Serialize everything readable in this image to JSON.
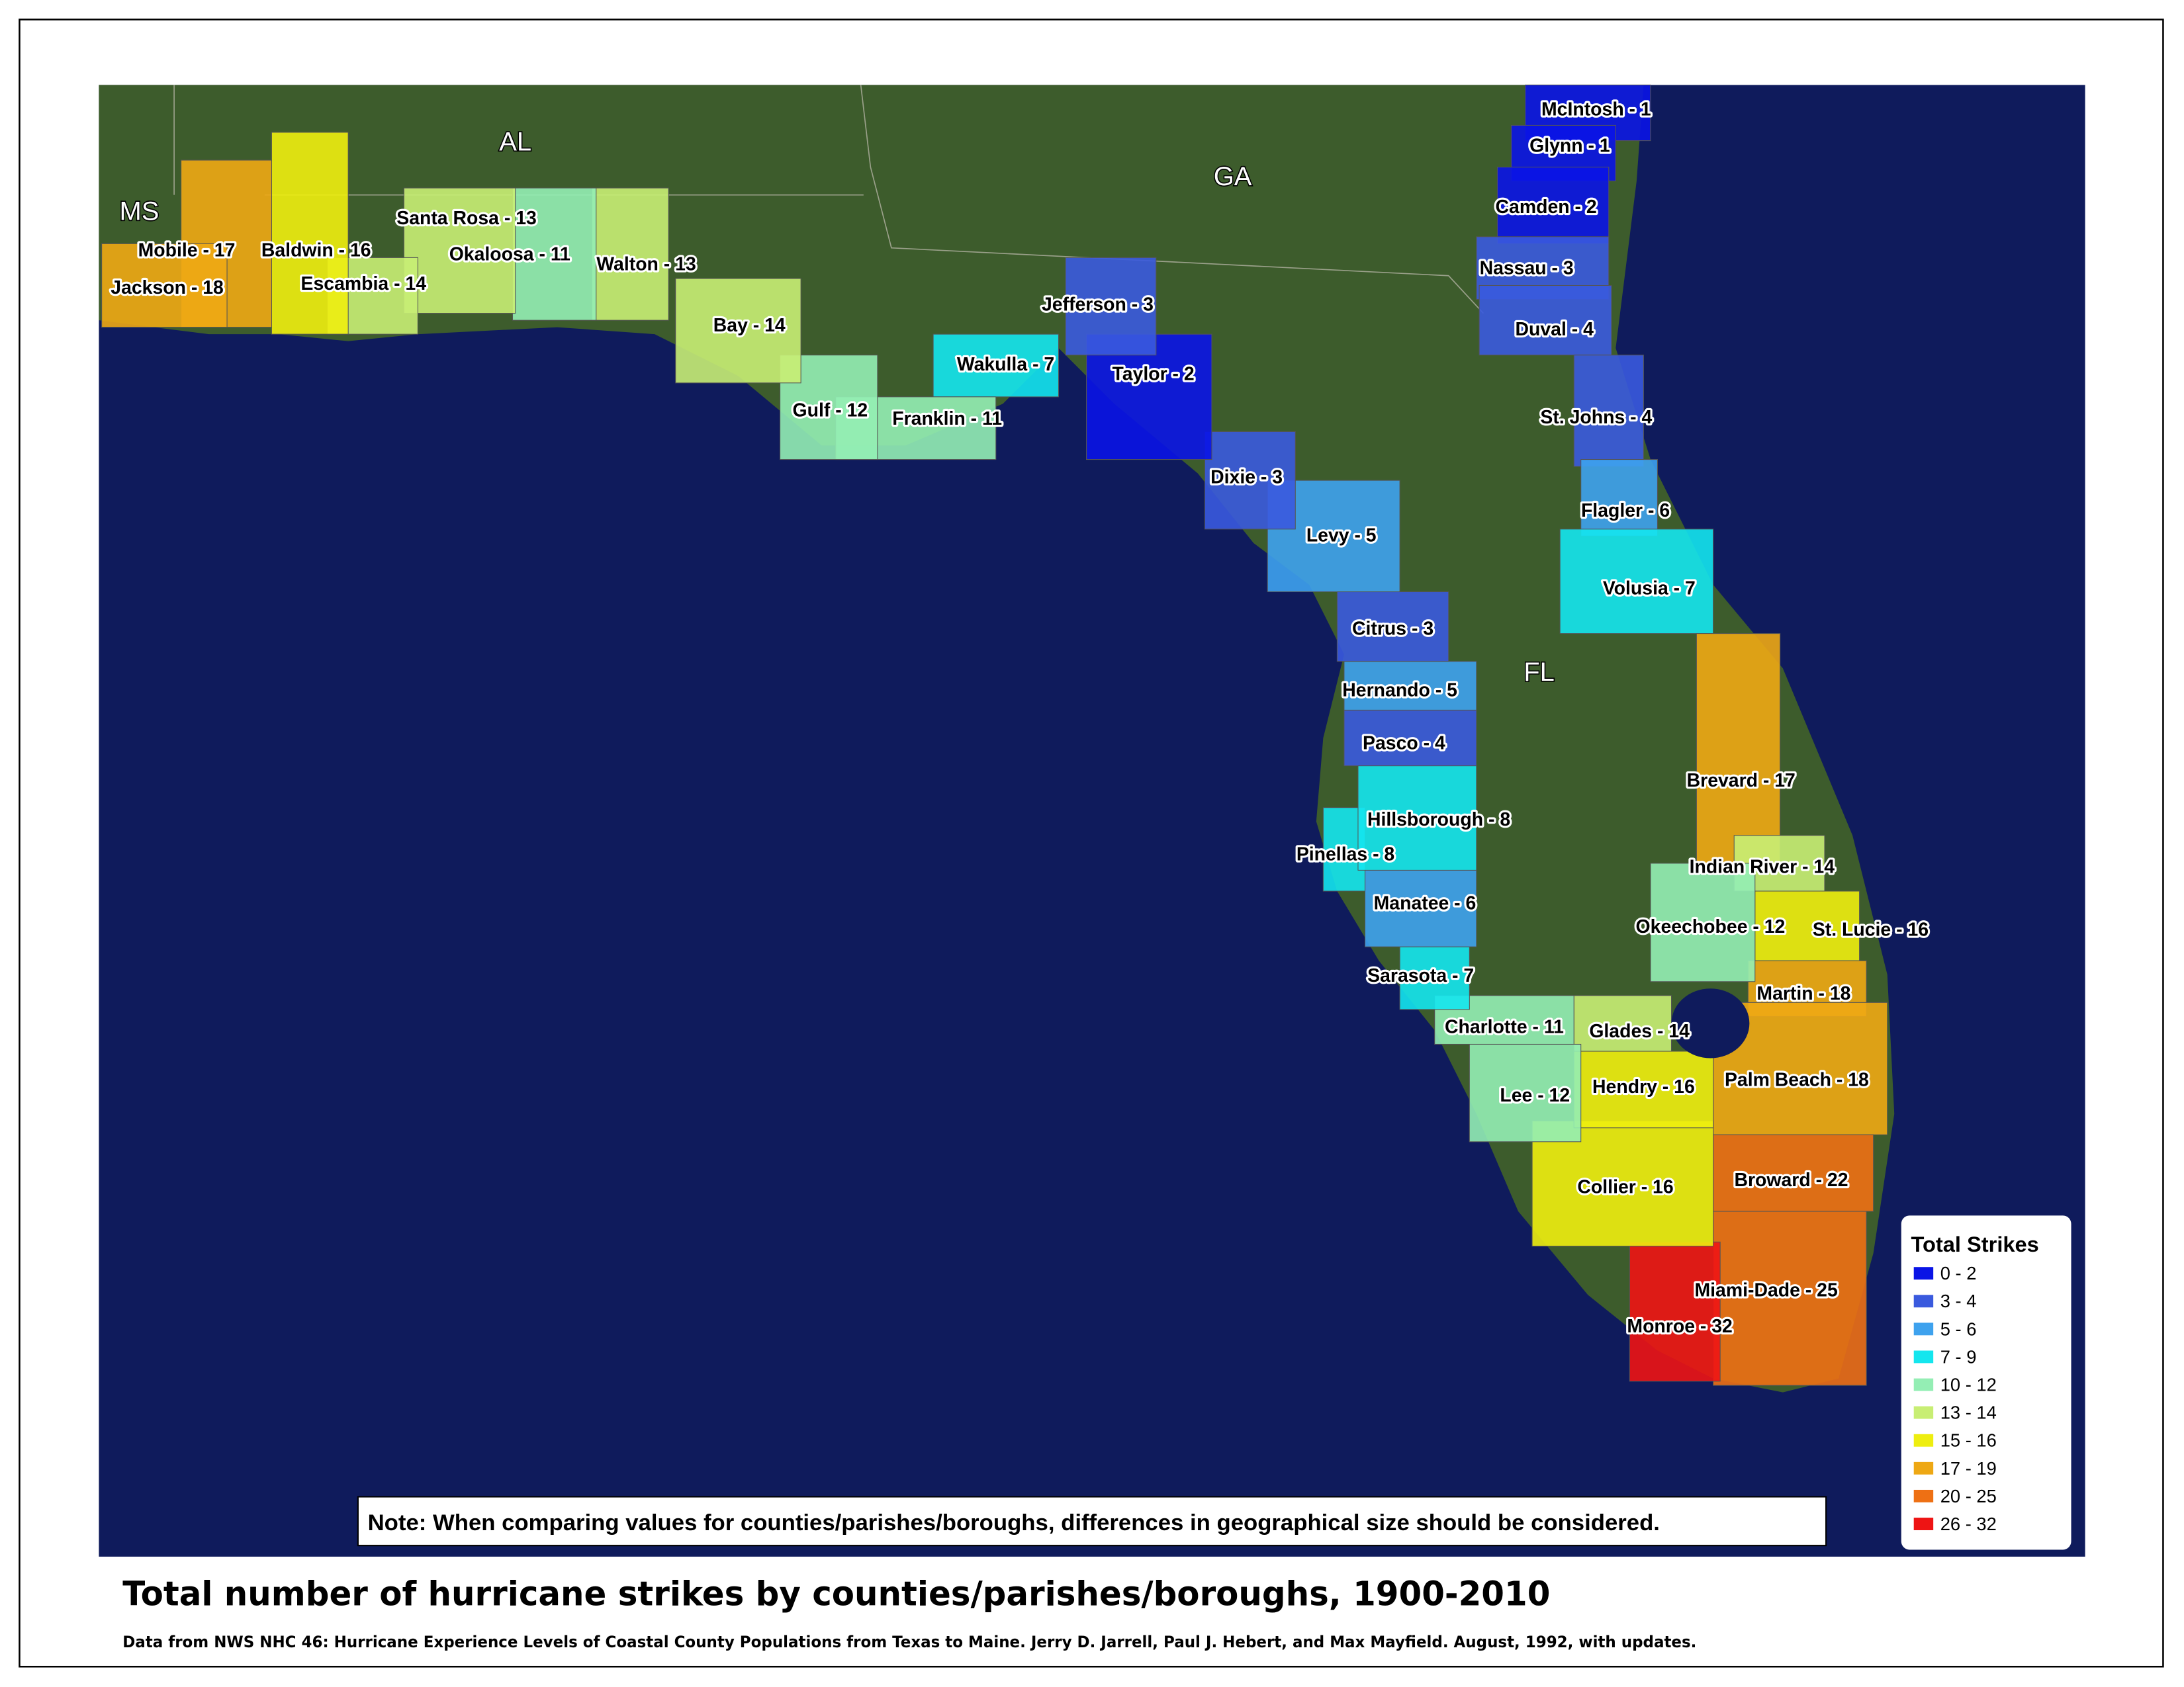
{
  "title": "Total number of hurricane strikes by counties/parishes/boroughs, 1900-2010",
  "source": "Data from NWS NHC 46: Hurricane Experience Levels of Coastal County Populations from Texas to Maine. Jerry D. Jarrell, Paul J. Hebert, and Max Mayfield. August, 1992, with updates.",
  "note": "Note: When comparing values for counties/parishes/boroughs, differences in geographical size should be considered.",
  "states": [
    "MS",
    "AL",
    "GA",
    "FL"
  ],
  "legend": {
    "title": "Total Strikes",
    "entries": [
      {
        "label": "0 - 2",
        "min": 0,
        "max": 2,
        "color": "#0a14e6"
      },
      {
        "label": "3 - 4",
        "min": 3,
        "max": 4,
        "color": "#3a5ade"
      },
      {
        "label": "5 - 6",
        "min": 5,
        "max": 6,
        "color": "#3ea2ee"
      },
      {
        "label": "7 - 9",
        "min": 7,
        "max": 9,
        "color": "#14e6ee"
      },
      {
        "label": "10 - 12",
        "min": 10,
        "max": 12,
        "color": "#94eeb4"
      },
      {
        "label": "13 - 14",
        "min": 13,
        "max": 14,
        "color": "#c8ee74"
      },
      {
        "label": "15 - 16",
        "min": 15,
        "max": 16,
        "color": "#eeee10"
      },
      {
        "label": "17 - 19",
        "min": 17,
        "max": 19,
        "color": "#eea814"
      },
      {
        "label": "20 - 25",
        "min": 20,
        "max": 25,
        "color": "#ee7014"
      },
      {
        "label": "26 - 32",
        "min": 26,
        "max": 32,
        "color": "#ee1414"
      }
    ]
  },
  "counties": [
    {
      "label": "McIntosh - 1",
      "strikes": 1
    },
    {
      "label": "Glynn - 1",
      "strikes": 1
    },
    {
      "label": "Camden - 2",
      "strikes": 2
    },
    {
      "label": "Nassau - 3",
      "strikes": 3
    },
    {
      "label": "Duval - 4",
      "strikes": 4
    },
    {
      "label": "St. Johns - 4",
      "strikes": 4
    },
    {
      "label": "Flagler - 6",
      "strikes": 6
    },
    {
      "label": "Volusia - 7",
      "strikes": 7
    },
    {
      "label": "Brevard - 17",
      "strikes": 17
    },
    {
      "label": "Indian River - 14",
      "strikes": 14
    },
    {
      "label": "St. Lucie - 16",
      "strikes": 16
    },
    {
      "label": "Martin - 18",
      "strikes": 18
    },
    {
      "label": "Palm Beach - 18",
      "strikes": 18
    },
    {
      "label": "Broward - 22",
      "strikes": 22
    },
    {
      "label": "Miami-Dade - 25",
      "strikes": 25
    },
    {
      "label": "Monroe - 32",
      "strikes": 32
    },
    {
      "label": "Collier - 16",
      "strikes": 16
    },
    {
      "label": "Hendry - 16",
      "strikes": 16
    },
    {
      "label": "Glades - 14",
      "strikes": 14
    },
    {
      "label": "Okeechobee - 12",
      "strikes": 12
    },
    {
      "label": "Lee - 12",
      "strikes": 12
    },
    {
      "label": "Charlotte - 11",
      "strikes": 11
    },
    {
      "label": "Sarasota - 7",
      "strikes": 7
    },
    {
      "label": "Manatee - 6",
      "strikes": 6
    },
    {
      "label": "Pinellas - 8",
      "strikes": 8
    },
    {
      "label": "Hillsborough - 8",
      "strikes": 8
    },
    {
      "label": "Pasco - 4",
      "strikes": 4
    },
    {
      "label": "Hernando - 5",
      "strikes": 5
    },
    {
      "label": "Citrus - 3",
      "strikes": 3
    },
    {
      "label": "Levy - 5",
      "strikes": 5
    },
    {
      "label": "Dixie - 3",
      "strikes": 3
    },
    {
      "label": "Taylor - 2",
      "strikes": 2
    },
    {
      "label": "Jefferson - 3",
      "strikes": 3
    },
    {
      "label": "Wakulla - 7",
      "strikes": 7
    },
    {
      "label": "Franklin - 11",
      "strikes": 11
    },
    {
      "label": "Gulf - 12",
      "strikes": 12
    },
    {
      "label": "Bay - 14",
      "strikes": 14
    },
    {
      "label": "Walton - 13",
      "strikes": 13
    },
    {
      "label": "Okaloosa - 11",
      "strikes": 11
    },
    {
      "label": "Santa Rosa - 13",
      "strikes": 13
    },
    {
      "label": "Escambia - 14",
      "strikes": 14
    },
    {
      "label": "Baldwin - 16",
      "strikes": 16
    },
    {
      "label": "Mobile - 17",
      "strikes": 17
    },
    {
      "label": "Jackson - 18",
      "strikes": 18
    }
  ]
}
